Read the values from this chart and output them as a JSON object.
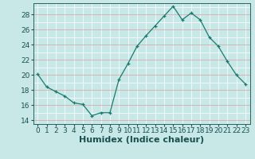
{
  "x": [
    0,
    1,
    2,
    3,
    4,
    5,
    6,
    7,
    8,
    9,
    10,
    11,
    12,
    13,
    14,
    15,
    16,
    17,
    18,
    19,
    20,
    21,
    22,
    23
  ],
  "y": [
    20.1,
    18.4,
    17.8,
    17.2,
    16.3,
    16.1,
    14.6,
    15.0,
    15.0,
    19.4,
    21.5,
    23.8,
    25.2,
    26.5,
    27.8,
    29.1,
    27.3,
    28.2,
    27.3,
    25.0,
    23.8,
    21.8,
    20.0,
    18.8
  ],
  "xlim": [
    -0.5,
    23.5
  ],
  "ylim": [
    13.5,
    29.5
  ],
  "yticks": [
    14,
    16,
    18,
    20,
    22,
    24,
    26,
    28
  ],
  "xticks": [
    0,
    1,
    2,
    3,
    4,
    5,
    6,
    7,
    8,
    9,
    10,
    11,
    12,
    13,
    14,
    15,
    16,
    17,
    18,
    19,
    20,
    21,
    22,
    23
  ],
  "xlabel": "Humidex (Indice chaleur)",
  "line_color": "#1a7a6e",
  "marker": "+",
  "marker_size": 3,
  "bg_color": "#c8e8e8",
  "grid_h_color": "#d8a0a0",
  "grid_v_color": "#ffffff",
  "axis_color": "#2a6060",
  "tick_label_color": "#1a5050",
  "xlabel_color": "#1a5050",
  "xlabel_fontsize": 8,
  "tick_fontsize": 6.5,
  "fig_bg": "#c8e8e8"
}
